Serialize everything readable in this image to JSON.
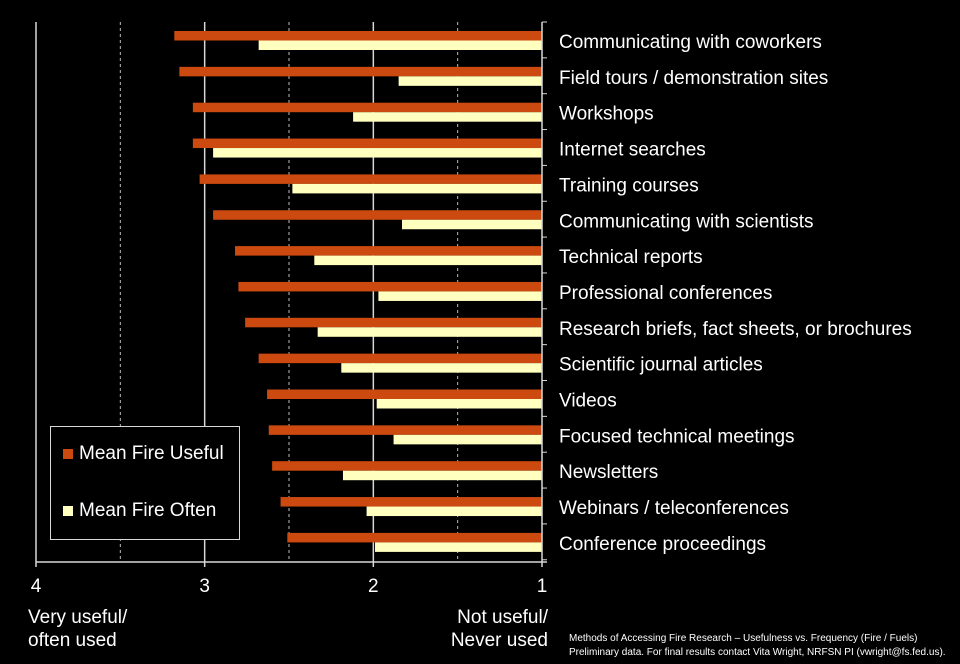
{
  "chart_data": {
    "type": "bar",
    "orientation": "horizontal",
    "categories": [
      "Communicating with coworkers",
      "Field tours / demonstration sites",
      "Workshops",
      "Internet searches",
      "Training courses",
      "Communicating with scientists",
      "Technical reports",
      "Professional conferences",
      "Research briefs, fact sheets, or brochures",
      "Scientific journal articles",
      "Videos",
      "Focused technical meetings",
      "Newsletters",
      "Webinars / teleconferences",
      "Conference proceedings"
    ],
    "series": [
      {
        "name": "Mean Fire Useful",
        "color": "#cc4a10",
        "values": [
          3.18,
          3.15,
          3.07,
          3.07,
          3.03,
          2.95,
          2.82,
          2.8,
          2.76,
          2.68,
          2.63,
          2.62,
          2.6,
          2.55,
          2.51
        ]
      },
      {
        "name": "Mean Fire Often",
        "color": "#ffffc0",
        "values": [
          2.68,
          1.85,
          2.12,
          2.95,
          2.48,
          1.83,
          2.35,
          1.97,
          2.33,
          2.19,
          1.98,
          1.88,
          2.18,
          2.04,
          1.99
        ]
      }
    ],
    "xlim": [
      4,
      1
    ],
    "x_ticks": [
      "4",
      "3",
      "2",
      "1"
    ],
    "xlabel_left": [
      "Very useful/",
      "often used"
    ],
    "xlabel_right": [
      "Not useful/",
      "Never used"
    ],
    "grid": {
      "solid_at": [
        4,
        3,
        2
      ],
      "dashed_at": [
        3.5,
        2.5,
        1.5
      ]
    },
    "legend_position": "bottom-left"
  },
  "footnote": {
    "line1": "Methods of Accessing Fire Research – Usefulness vs. Frequency (Fire / Fuels)",
    "line2": "Preliminary data. For final results contact Vita Wright, NRFSN PI (vwright@fs.fed.us)."
  }
}
